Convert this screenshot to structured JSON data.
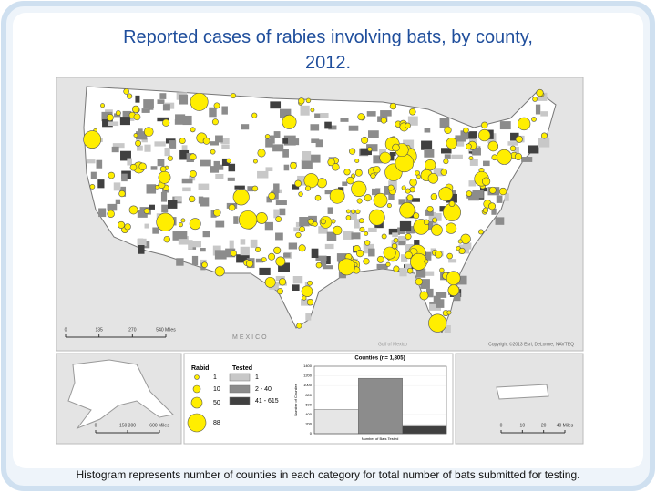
{
  "title": "Reported cases of rabies involving  bats, by county, 2012.",
  "caption": "Histogram represents  number of counties in each category for total number  of bats submitted for  testing.",
  "map": {
    "country_label": "MEXICO",
    "sea_label": "Gulf of Mexico",
    "copyright": "Copyright ©2013 Esri, DeLorme, NAVTEQ",
    "scale_labels": [
      "0",
      "135",
      "270",
      "540 Miles"
    ]
  },
  "alaska": {
    "scale_labels": [
      "0",
      "150 300",
      "600 Miles"
    ]
  },
  "puerto_rico": {
    "scale_labels": [
      "0",
      "10",
      "20",
      "40 Miles"
    ]
  },
  "legend": {
    "rabid_title": "Rabid",
    "rabid": [
      "1",
      "10",
      "50",
      "88"
    ],
    "tested_title": "Tested",
    "tested": [
      "1",
      "2 - 40",
      "41 - 615"
    ]
  },
  "histogram": {
    "title": "Counties (n= 1,805)",
    "y_label": "Number of Counties",
    "x_label": "Number of Bats Tested",
    "values": [
      500,
      1150,
      155
    ],
    "colors": [
      "#e6e6e6",
      "#8c8c8c",
      "#404040"
    ],
    "ylim": [
      0,
      1400
    ],
    "yticks": [
      0,
      200,
      400,
      600,
      800,
      1000,
      1200,
      1400
    ]
  }
}
